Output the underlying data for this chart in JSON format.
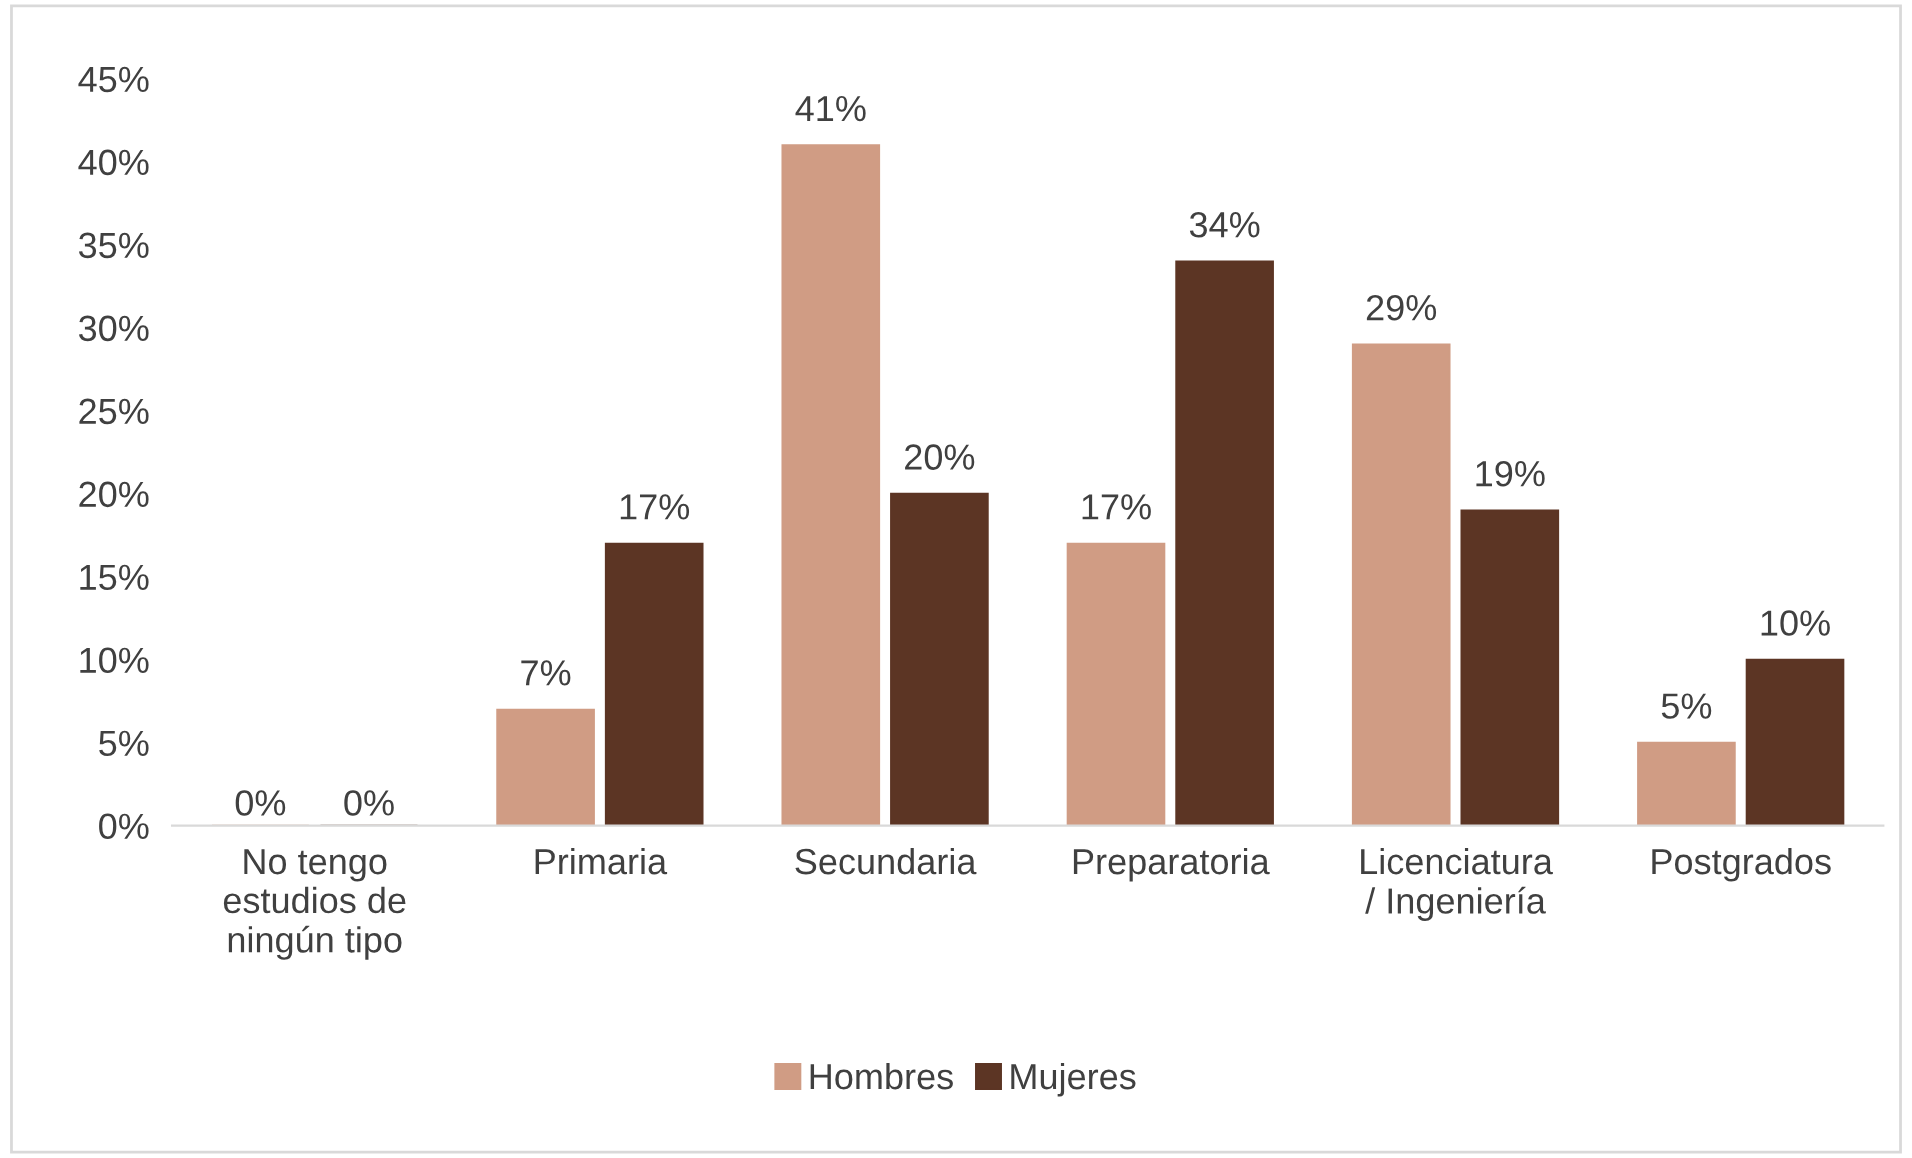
{
  "chart_data": {
    "type": "bar",
    "categories": [
      "No tengo\nestudios de\nningún tipo",
      "Primaria",
      "Secundaria",
      "Preparatoria",
      "Licenciatura\n/ Ingeniería",
      "Postgrados"
    ],
    "series": [
      {
        "name": "Hombres",
        "color": "#d09c84",
        "values": [
          0,
          7,
          41,
          17,
          29,
          5
        ],
        "value_labels": [
          "0%",
          "7%",
          "41%",
          "17%",
          "29%",
          "5%"
        ]
      },
      {
        "name": "Mujeres",
        "color": "#5c3524",
        "values": [
          0,
          17,
          20,
          34,
          19,
          10
        ],
        "value_labels": [
          "0%",
          "17%",
          "20%",
          "34%",
          "19%",
          "10%"
        ]
      }
    ],
    "ylim": [
      0,
      45
    ],
    "yticks": [
      {
        "value": 0,
        "label": "0%"
      },
      {
        "value": 5,
        "label": "5%"
      },
      {
        "value": 10,
        "label": "10%"
      },
      {
        "value": 15,
        "label": "15%"
      },
      {
        "value": 20,
        "label": "20%"
      },
      {
        "value": 25,
        "label": "25%"
      },
      {
        "value": 30,
        "label": "30%"
      },
      {
        "value": 35,
        "label": "35%"
      },
      {
        "value": 40,
        "label": "40%"
      },
      {
        "value": 45,
        "label": "45%"
      }
    ],
    "grid": false,
    "legend": "bottom"
  }
}
